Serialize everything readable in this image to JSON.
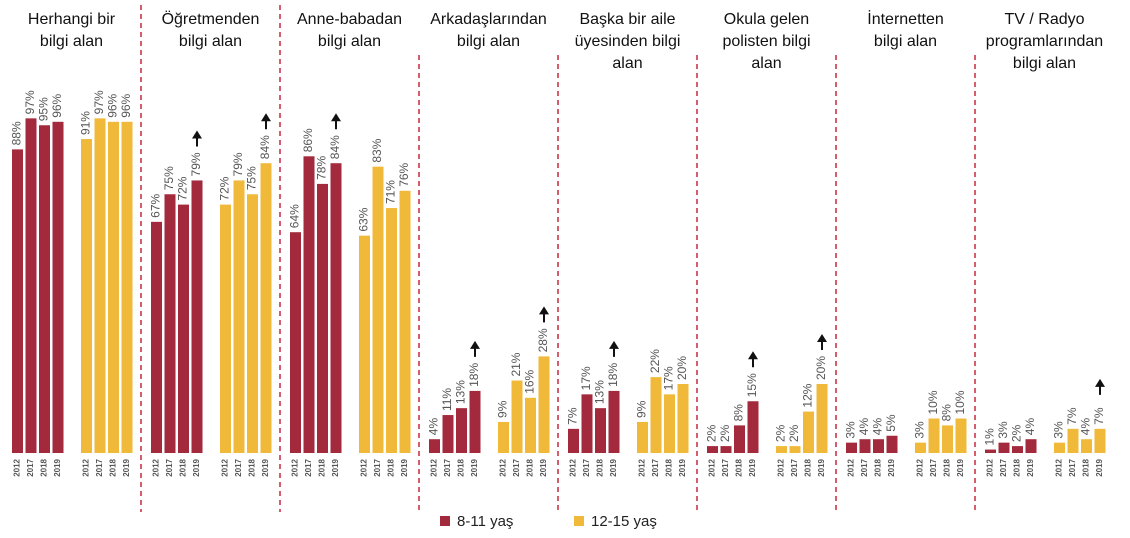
{
  "chart_data": {
    "type": "bar",
    "categories": [
      [
        "Herhangi bir",
        "bilgi alan"
      ],
      [
        "Öğretmenden",
        "bilgi alan"
      ],
      [
        "Anne-babadan",
        "bilgi alan"
      ],
      [
        "Arkadaşlarından",
        "bilgi alan"
      ],
      [
        "Başka bir aile",
        "üyesinden bilgi",
        "alan"
      ],
      [
        "Okula gelen",
        "polisten bilgi",
        "alan"
      ],
      [
        "İnternetten",
        "bilgi alan"
      ],
      [
        "TV / Radyo",
        "programlarından",
        "bilgi alan"
      ]
    ],
    "years": [
      "2012",
      "2017",
      "2018",
      "2019"
    ],
    "ylim": [
      0,
      100
    ],
    "series": [
      {
        "name": "8-11 yaş",
        "color": "#a32a3c",
        "values": [
          [
            88,
            97,
            95,
            96
          ],
          [
            67,
            75,
            72,
            79
          ],
          [
            64,
            86,
            78,
            84
          ],
          [
            4,
            11,
            13,
            18
          ],
          [
            7,
            17,
            13,
            18
          ],
          [
            2,
            2,
            8,
            15
          ],
          [
            3,
            4,
            4,
            5
          ],
          [
            1,
            3,
            2,
            4
          ]
        ],
        "value_labels": [
          [
            "88%",
            "97%",
            "95%",
            "96%"
          ],
          [
            "67%",
            "75%",
            "72%",
            "79%"
          ],
          [
            "64%",
            "86%",
            "78%",
            "84%"
          ],
          [
            "4%",
            "11%",
            "13%",
            "18%"
          ],
          [
            "7%",
            "17%",
            "13%",
            "18%"
          ],
          [
            "2%",
            "2%",
            "8%",
            "15%"
          ],
          [
            "3%",
            "4%",
            "4%",
            "5%"
          ],
          [
            "1%",
            "3%",
            "2%",
            "4%"
          ]
        ],
        "arrows": [
          false,
          true,
          true,
          true,
          true,
          true,
          false,
          false
        ]
      },
      {
        "name": "12-15 yaş",
        "color": "#f0b93a",
        "values": [
          [
            91,
            97,
            96,
            96
          ],
          [
            72,
            79,
            75,
            84
          ],
          [
            63,
            83,
            71,
            76
          ],
          [
            9,
            21,
            16,
            28
          ],
          [
            9,
            22,
            17,
            20
          ],
          [
            2,
            2,
            12,
            20
          ],
          [
            3,
            10,
            8,
            10
          ],
          [
            3,
            7,
            4,
            7
          ]
        ],
        "value_labels": [
          [
            "91%",
            "97%",
            "96%",
            "96%"
          ],
          [
            "72%",
            "79%",
            "75%",
            "84%"
          ],
          [
            "63%",
            "83%",
            "71%",
            "76%"
          ],
          [
            "9%",
            "21%",
            "16%",
            "28%"
          ],
          [
            "9%",
            "22%",
            "17%",
            "20%"
          ],
          [
            "2%",
            "2%",
            "12%",
            "20%"
          ],
          [
            "3%",
            "10%",
            "8%",
            "10%"
          ],
          [
            "3%",
            "7%",
            "4%",
            "7%"
          ]
        ],
        "arrows": [
          false,
          true,
          false,
          true,
          false,
          true,
          false,
          true
        ]
      }
    ]
  }
}
